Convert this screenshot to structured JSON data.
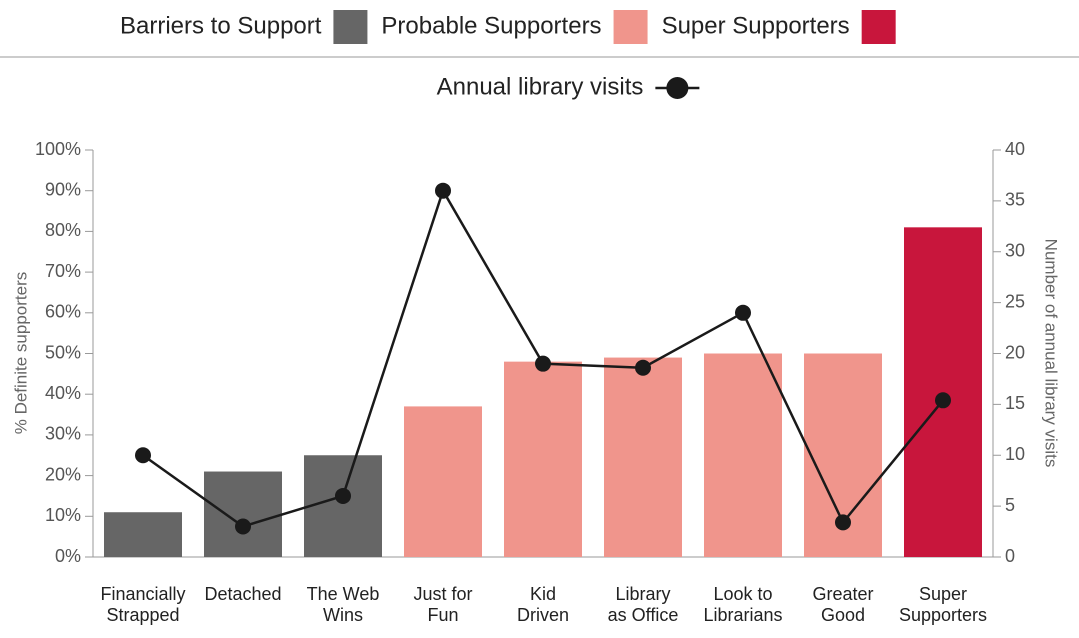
{
  "chart_data": {
    "type": "bar",
    "categories": [
      [
        "Financially",
        "Strapped"
      ],
      [
        "Detached"
      ],
      [
        "The Web",
        "Wins"
      ],
      [
        "Just for",
        "Fun"
      ],
      [
        "Kid",
        "Driven"
      ],
      [
        "Library",
        "as Office"
      ],
      [
        "Look to",
        "Librarians"
      ],
      [
        "Greater",
        "Good"
      ],
      [
        "Super",
        "Supporters"
      ]
    ],
    "series": [
      {
        "name": "Barriers to Support",
        "color": "#666666",
        "values": [
          11,
          21,
          25,
          null,
          null,
          null,
          null,
          null,
          null
        ]
      },
      {
        "name": "Probable Supporters",
        "color": "#f0958c",
        "values": [
          null,
          null,
          null,
          37,
          48,
          49,
          50,
          50,
          null
        ]
      },
      {
        "name": "Super Supporters",
        "color": "#c8163c",
        "values": [
          null,
          null,
          null,
          null,
          null,
          null,
          null,
          null,
          81
        ]
      },
      {
        "name": "Annual library visits",
        "type": "line",
        "axis": "y2",
        "color": "#1a1a1a",
        "values": [
          10,
          3,
          6,
          36,
          19,
          18.6,
          24,
          3.4,
          15.4
        ]
      }
    ],
    "ylabel": "% Definite supporters",
    "y2label": "Number of annual library visits",
    "ylim": [
      0,
      100
    ],
    "yticks": [
      {
        "value": 0,
        "label": "0%"
      },
      {
        "value": 10,
        "label": "10%"
      },
      {
        "value": 20,
        "label": "20%"
      },
      {
        "value": 30,
        "label": "30%"
      },
      {
        "value": 40,
        "label": "40%"
      },
      {
        "value": 50,
        "label": "50%"
      },
      {
        "value": 60,
        "label": "60%"
      },
      {
        "value": 70,
        "label": "70%"
      },
      {
        "value": 80,
        "label": "80%"
      },
      {
        "value": 90,
        "label": "90%"
      },
      {
        "value": 100,
        "label": "100%"
      }
    ],
    "y2lim": [
      0,
      40
    ],
    "y2ticks": [
      0,
      5,
      10,
      15,
      20,
      25,
      30,
      35,
      40
    ],
    "legend": "top"
  }
}
